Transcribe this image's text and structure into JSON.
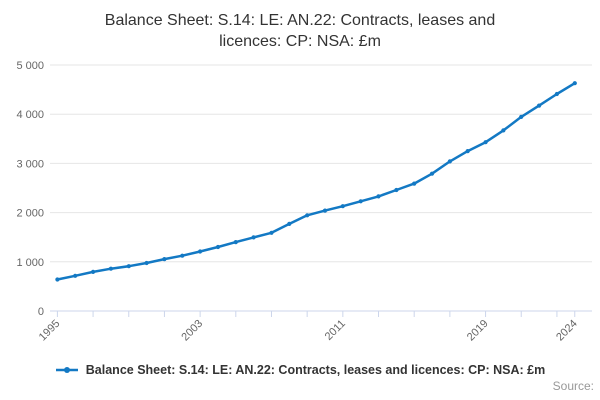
{
  "title_line1": "Balance Sheet: S.14: LE: AN.22: Contracts, leases and",
  "title_line2": "licences: CP: NSA: £m",
  "legend": {
    "label": "Balance Sheet: S.14: LE: AN.22: Contracts, leases and licences: CP: NSA: £m"
  },
  "source_label": "Source:",
  "colors": {
    "line": "#1379c4",
    "grid": "#e6e6e6",
    "axis": "#ccd6eb",
    "tick_text": "#666666",
    "title_text": "#333333",
    "source_text": "#999999"
  },
  "chart_data": {
    "type": "line",
    "title": "Balance Sheet: S.14: LE: AN.22: Contracts, leases and licences: CP: NSA: £m",
    "x": [
      1995,
      1996,
      1997,
      1998,
      1999,
      2000,
      2001,
      2002,
      2003,
      2004,
      2005,
      2006,
      2007,
      2008,
      2009,
      2010,
      2011,
      2012,
      2013,
      2014,
      2015,
      2016,
      2017,
      2018,
      2019,
      2020,
      2021,
      2022,
      2023,
      2024
    ],
    "series": [
      {
        "name": "Balance Sheet: S.14: LE: AN.22: Contracts, leases and licences: CP: NSA: £m",
        "values": [
          640,
          715,
          795,
          860,
          910,
          975,
          1055,
          1125,
          1210,
          1300,
          1400,
          1495,
          1590,
          1770,
          1945,
          2040,
          2130,
          2230,
          2330,
          2460,
          2590,
          2790,
          3040,
          3250,
          3430,
          3670,
          3945,
          4175,
          4410,
          4630
        ]
      }
    ],
    "xlabel": "",
    "ylabel": "",
    "ylim": [
      0,
      5000
    ],
    "y_ticks": [
      0,
      1000,
      2000,
      3000,
      4000,
      5000
    ],
    "y_tick_labels": [
      "0",
      "1 000",
      "2 000",
      "3 000",
      "4 000",
      "5 000"
    ],
    "x_ticks": [
      1995,
      1997,
      1999,
      2001,
      2003,
      2005,
      2007,
      2009,
      2011,
      2013,
      2015,
      2017,
      2019,
      2021,
      2023,
      2024
    ],
    "x_tick_labeled": [
      1995,
      2003,
      2011,
      2019,
      2024
    ],
    "grid": true,
    "legend_position": "bottom"
  }
}
